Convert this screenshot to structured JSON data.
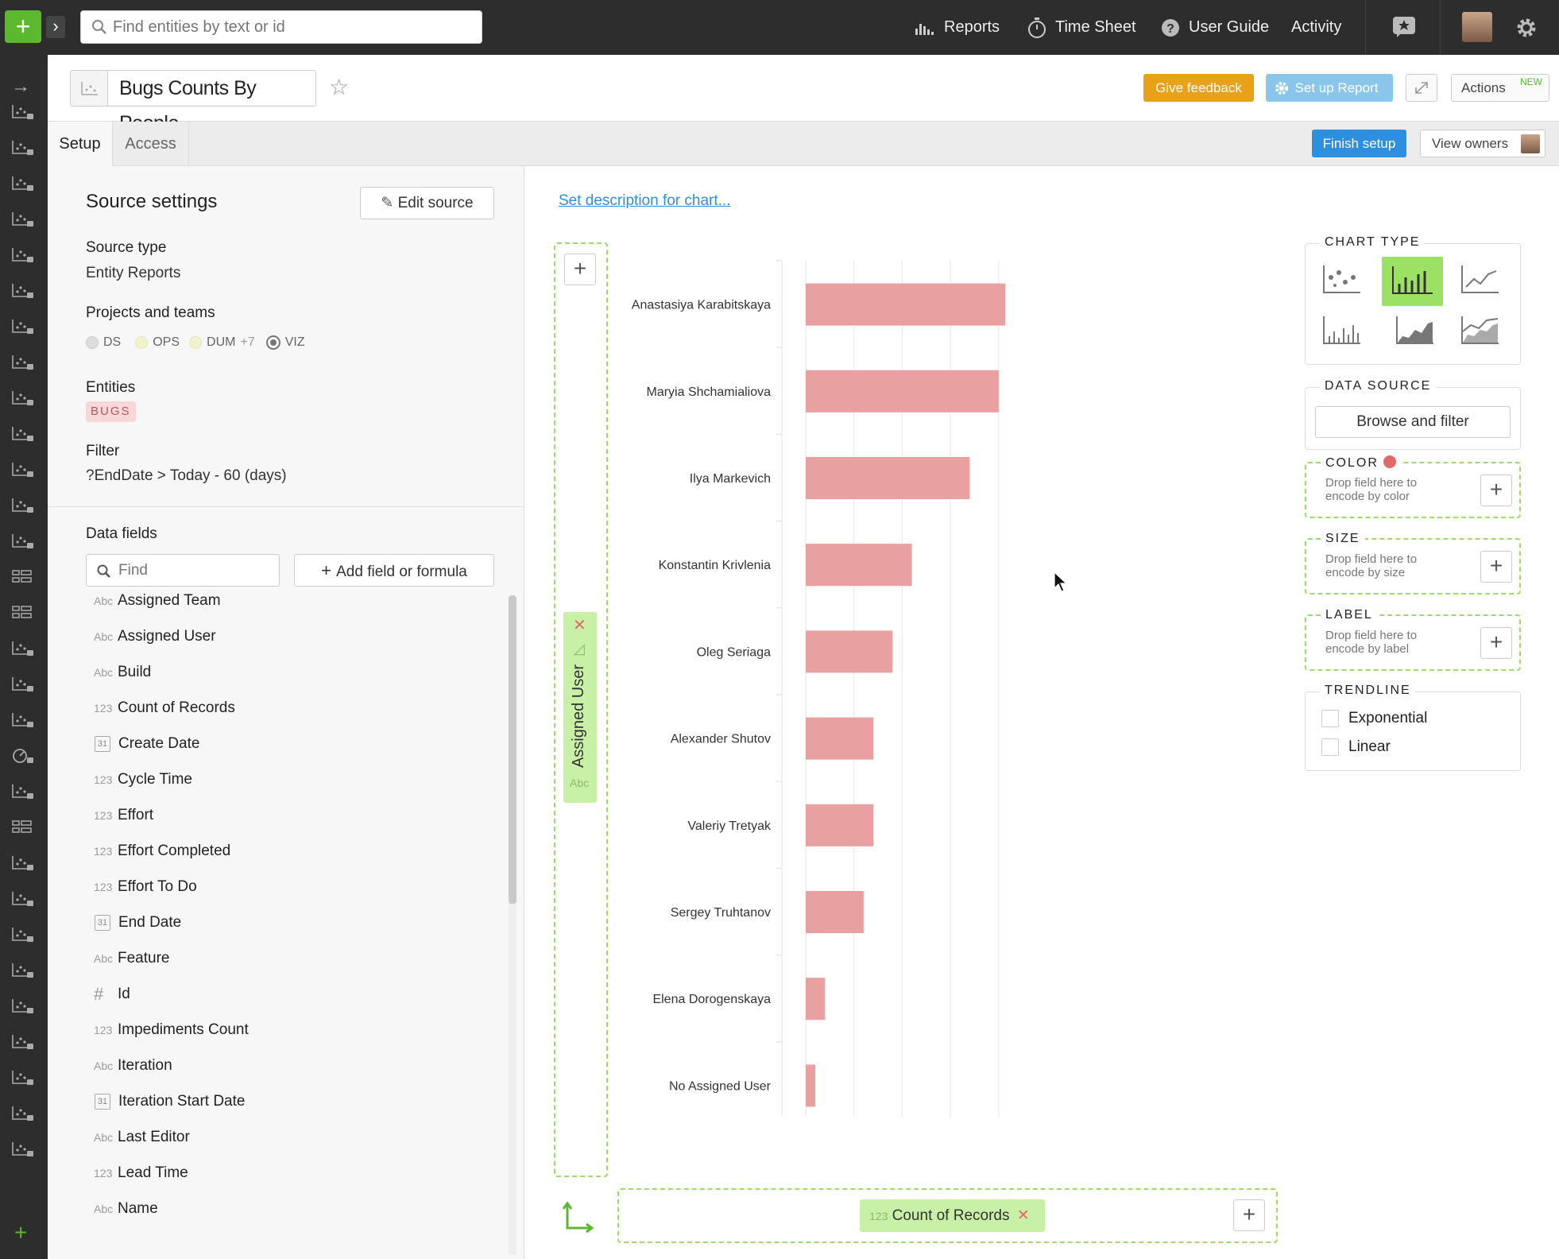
{
  "topbar": {
    "search_placeholder": "Find entities by text or id",
    "nav": {
      "reports": "Reports",
      "timesheet": "Time Sheet",
      "userguide": "User Guide",
      "activity": "Activity"
    }
  },
  "header": {
    "title": "Bugs Counts By People",
    "give_feedback": "Give feedback",
    "setup_report": "Set up Report",
    "actions": "Actions",
    "actions_badge": "NEW"
  },
  "tabs": {
    "setup": "Setup",
    "access": "Access",
    "finish_setup": "Finish setup",
    "view_owners": "View owners"
  },
  "source": {
    "title": "Source settings",
    "edit": "Edit source",
    "type_label": "Source type",
    "type_value": "Entity Reports",
    "projects_label": "Projects and teams",
    "projects": [
      {
        "name": "DS",
        "color": "#dddddd"
      },
      {
        "name": "OPS",
        "color": "#f2f2cc"
      },
      {
        "name": "DUM",
        "color": "#f2f2cc"
      },
      {
        "name": "+7",
        "color": ""
      },
      {
        "name": "VIZ",
        "color": "#ffffff"
      }
    ],
    "entities_label": "Entities",
    "entity": "BUGS",
    "filter_label": "Filter",
    "filter_value": "?EndDate > Today - 60 (days)"
  },
  "datafields": {
    "title": "Data fields",
    "find_placeholder": "Find",
    "add_button": "Add field or formula",
    "fields": [
      {
        "type": "Abc",
        "name": "Assigned Team"
      },
      {
        "type": "Abc",
        "name": "Assigned User"
      },
      {
        "type": "Abc",
        "name": "Build"
      },
      {
        "type": "123",
        "name": "Count of Records"
      },
      {
        "type": "31",
        "name": "Create Date"
      },
      {
        "type": "123",
        "name": "Cycle Time"
      },
      {
        "type": "123",
        "name": "Effort"
      },
      {
        "type": "123",
        "name": "Effort Completed"
      },
      {
        "type": "123",
        "name": "Effort To Do"
      },
      {
        "type": "31",
        "name": "End Date"
      },
      {
        "type": "Abc",
        "name": "Feature"
      },
      {
        "type": "#",
        "name": "Id"
      },
      {
        "type": "123",
        "name": "Impediments Count"
      },
      {
        "type": "Abc",
        "name": "Iteration"
      },
      {
        "type": "31",
        "name": "Iteration Start Date"
      },
      {
        "type": "Abc",
        "name": "Last Editor"
      },
      {
        "type": "123",
        "name": "Lead Time"
      },
      {
        "type": "Abc",
        "name": "Name"
      }
    ]
  },
  "main": {
    "description_link": "Set description for chart...",
    "y_pill": {
      "name": "Assigned User",
      "type": "Abc"
    },
    "x_pill": {
      "name": "Count of Records",
      "type": "123"
    }
  },
  "rightpanel": {
    "chart_type": "CHART TYPE",
    "data_source": "DATA SOURCE",
    "browse": "Browse and filter",
    "color": "COLOR",
    "color_hint": "Drop field here to encode by color",
    "size": "SIZE",
    "size_hint": "Drop field here to encode by size",
    "label": "LABEL",
    "label_hint": "Drop field here to encode by label",
    "trendline": "TRENDLINE",
    "exponential": "Exponential",
    "linear": "Linear"
  },
  "chart_data": {
    "type": "bar",
    "orientation": "horizontal",
    "categories": [
      "Anastasiya Karabitskaya",
      "Maryia Shchamialiova",
      "Ilya Markevich",
      "Konstantin Krivlenia",
      "Oleg Seriaga",
      "Alexander Shutov",
      "Valeriy Tretyak",
      "Sergey Truhtanov",
      "Elena Dorogenskaya",
      "No Assigned User"
    ],
    "values": [
      56,
      20,
      17,
      11,
      9,
      7,
      7,
      6,
      2,
      1
    ],
    "xlim": [
      0,
      56
    ],
    "xticks": [
      0,
      5,
      10,
      15,
      20,
      25,
      30,
      35,
      40,
      45,
      50,
      55
    ],
    "color": "#e8a0a0",
    "grid": true
  }
}
